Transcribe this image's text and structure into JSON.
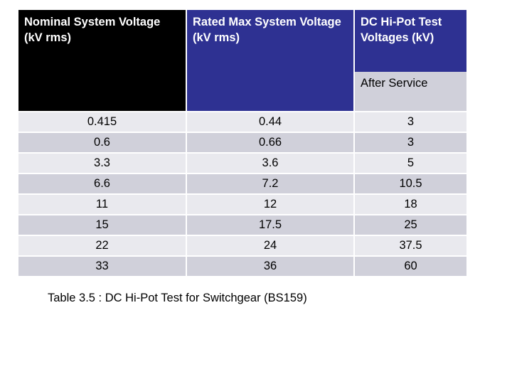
{
  "table": {
    "headers": {
      "col1": "Nominal System Voltage (kV rms)",
      "col2": "Rated Max System Voltage (kV rms)",
      "col3": "DC Hi-Pot Test Voltages (kV)",
      "col3_sub": "After Service"
    },
    "rows": [
      [
        "0.415",
        "0.44",
        "3"
      ],
      [
        "0.6",
        "0.66",
        "3"
      ],
      [
        "3.3",
        "3.6",
        "5"
      ],
      [
        "6.6",
        "7.2",
        "10.5"
      ],
      [
        "11",
        "12",
        "18"
      ],
      [
        "15",
        "17.5",
        "25"
      ],
      [
        "22",
        "24",
        "37.5"
      ],
      [
        "33",
        "36",
        "60"
      ]
    ]
  },
  "caption": "Table 3.5 : DC Hi-Pot Test for Switchgear (BS159)",
  "colors": {
    "header_black": "#000000",
    "header_blue": "#2e3192",
    "row_light": "#e9e9ee",
    "row_dark": "#d0d0da"
  }
}
